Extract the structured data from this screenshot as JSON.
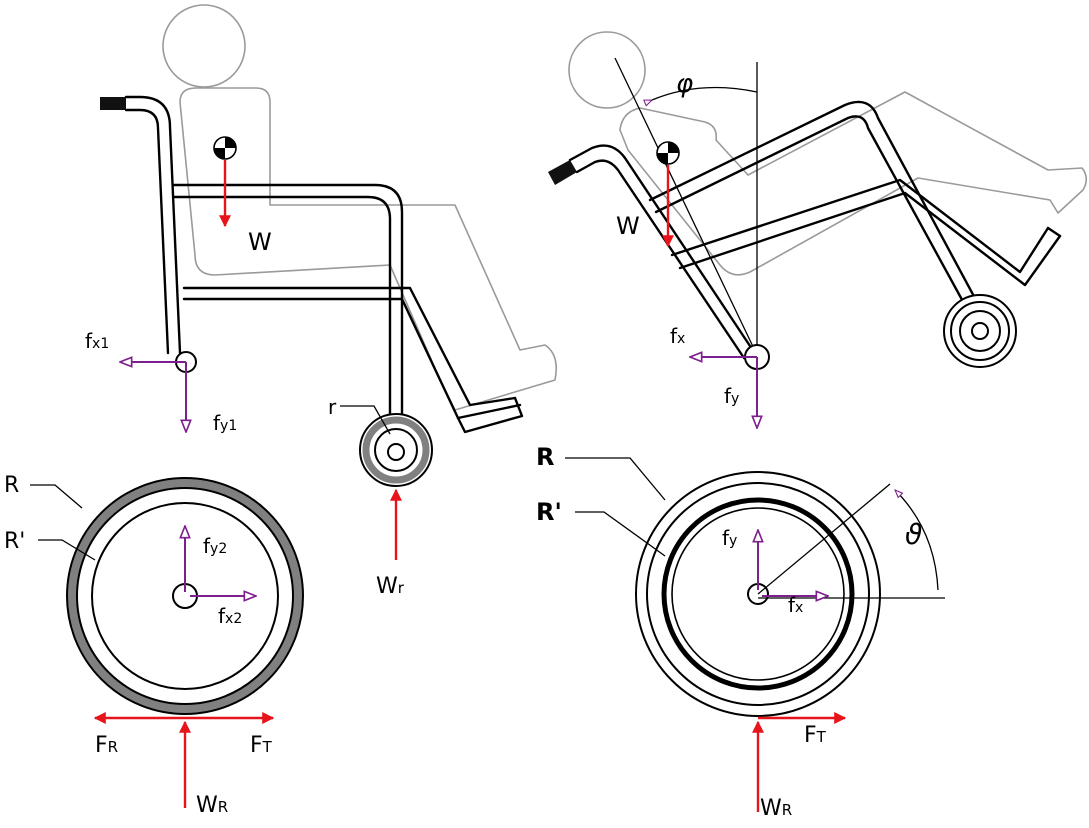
{
  "labels": {
    "left": {
      "weight": "W",
      "fx1_main": "f",
      "fx1_sub": "x1",
      "fy1_main": "f",
      "fy1_sub": "y1",
      "radius_small": "r",
      "wr_main": "W",
      "wr_sub": "r",
      "radius_R": "R",
      "radius_R_prime": "R'",
      "fy2_main": "f",
      "fy2_sub": "y2",
      "fx2_main": "f",
      "fx2_sub": "x2",
      "FR_main": "F",
      "FR_sub": "R",
      "FT_main": "F",
      "FT_sub": "T",
      "WR_main": "W",
      "WR_sub": "R"
    },
    "right": {
      "angle_phi": "φ",
      "weight": "W",
      "fx_main": "f",
      "fx_sub": "x",
      "fy_main": "f",
      "fy_sub": "y",
      "radius_R": "R",
      "radius_R_prime": "R'",
      "angle_theta": "ϑ",
      "wheel_fy_main": "f",
      "wheel_fy_sub": "y",
      "wheel_fx_main": "f",
      "wheel_fx_sub": "x",
      "FT_main": "F",
      "FT_sub": "T",
      "WR_main": "W",
      "WR_sub": "R"
    }
  },
  "colors": {
    "applied_force": "#e8141b",
    "reaction_force": "#7d1f8c",
    "person_outline": "#9a9a9a",
    "tyre_fill": "#808080"
  }
}
